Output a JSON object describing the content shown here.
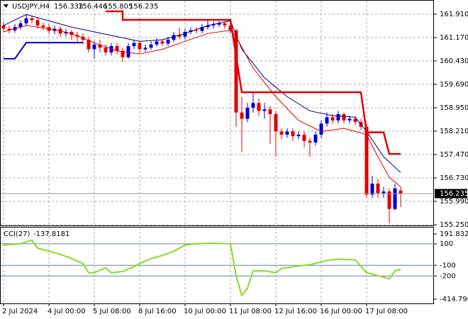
{
  "chart_data": [
    {
      "type": "candlestick",
      "title": "USDJPY,H4",
      "xlim": [
        -0.625,
        75.875
      ],
      "ylim": [
        155.228,
        162.358
      ],
      "xticks": [
        {
          "value": 0,
          "label": "2 Jul 2024"
        },
        {
          "value": 8,
          "label": "4 Jul 00:00"
        },
        {
          "value": 16,
          "label": "5 Jul 08:00"
        },
        {
          "value": 24,
          "label": "8 Jul 16:00"
        },
        {
          "value": 32,
          "label": "10 Jul 00:00"
        },
        {
          "value": 40,
          "label": "11 Jul 08:00"
        },
        {
          "value": 48,
          "label": "12 Jul 16:00"
        },
        {
          "value": 56,
          "label": "16 Jul 00:00"
        },
        {
          "value": 64,
          "label": "17 Jul 08:00"
        }
      ],
      "yticks": [
        {
          "value": 161.91,
          "label": "161.910"
        },
        {
          "value": 161.17,
          "label": "161.170"
        },
        {
          "value": 160.43,
          "label": "160.430"
        },
        {
          "value": 159.69,
          "label": "159.690"
        },
        {
          "value": 158.95,
          "label": "158.950"
        },
        {
          "value": 158.21,
          "label": "158.210"
        },
        {
          "value": 157.47,
          "label": "157.470"
        },
        {
          "value": 156.73,
          "label": "156.730"
        },
        {
          "value": 155.99,
          "label": "155.990"
        },
        {
          "value": 155.25,
          "label": "155.250"
        }
      ],
      "grid": true,
      "up_color": "#0000cc",
      "down_color": "#e00000",
      "candles": {
        "x": [
          0,
          1,
          2,
          3,
          4,
          5,
          6,
          7,
          8,
          9,
          10,
          11,
          12,
          13,
          14,
          15,
          16,
          17,
          18,
          19,
          20,
          21,
          22,
          23,
          24,
          25,
          26,
          27,
          28,
          29,
          30,
          31,
          32,
          33,
          34,
          35,
          36,
          37,
          38,
          39,
          40,
          41,
          42,
          43,
          44,
          45,
          46,
          47,
          48,
          49,
          50,
          51,
          52,
          53,
          54,
          55,
          56,
          57,
          58,
          59,
          60,
          61,
          62,
          63,
          64,
          65,
          66,
          67,
          68,
          69,
          70
        ],
        "open": [
          161.55,
          161.45,
          161.4,
          161.5,
          161.62,
          161.78,
          161.72,
          161.55,
          161.5,
          161.38,
          161.45,
          161.3,
          161.35,
          161.25,
          161.2,
          161.1,
          160.8,
          160.95,
          160.85,
          160.7,
          160.9,
          160.75,
          160.55,
          160.9,
          161.0,
          160.8,
          160.85,
          160.95,
          161.05,
          160.98,
          161.1,
          161.25,
          161.2,
          161.35,
          161.4,
          161.38,
          161.5,
          161.55,
          161.58,
          161.62,
          161.55,
          161.4,
          158.8,
          158.6,
          158.95,
          159.1,
          158.85,
          158.9,
          158.75,
          158.2,
          158.1,
          158.2,
          158.05,
          158.1,
          157.9,
          157.85,
          158.1,
          158.45,
          158.65,
          158.55,
          158.75,
          158.55,
          158.6,
          158.5,
          158.35,
          156.2,
          156.55,
          156.25,
          156.3,
          155.75,
          156.333
        ],
        "high": [
          161.68,
          161.55,
          161.6,
          161.72,
          161.9,
          161.85,
          161.8,
          161.65,
          161.6,
          161.55,
          161.52,
          161.45,
          161.42,
          161.35,
          161.3,
          161.2,
          161.05,
          161.1,
          160.95,
          161.0,
          161.0,
          160.85,
          161.0,
          161.1,
          161.05,
          160.95,
          161.05,
          161.15,
          161.12,
          161.2,
          161.35,
          161.48,
          161.45,
          161.5,
          161.5,
          161.6,
          161.75,
          161.68,
          161.7,
          161.68,
          161.65,
          161.45,
          159.3,
          159.1,
          159.4,
          159.25,
          159.1,
          159.0,
          158.85,
          158.3,
          158.3,
          158.3,
          158.2,
          158.2,
          158.0,
          158.2,
          158.55,
          158.8,
          158.75,
          158.85,
          158.8,
          158.7,
          158.68,
          158.6,
          158.45,
          156.8,
          156.7,
          156.45,
          156.4,
          156.55,
          156.446
        ],
        "low": [
          161.35,
          161.3,
          161.32,
          161.42,
          161.55,
          161.62,
          161.45,
          161.4,
          161.28,
          161.28,
          161.2,
          161.2,
          161.1,
          161.05,
          160.95,
          160.7,
          160.5,
          160.7,
          160.6,
          160.6,
          160.65,
          160.4,
          160.5,
          160.8,
          160.7,
          160.72,
          160.78,
          160.88,
          160.9,
          160.9,
          161.02,
          161.12,
          161.12,
          161.28,
          161.3,
          161.3,
          161.42,
          161.45,
          161.5,
          161.45,
          161.3,
          158.35,
          157.55,
          158.5,
          158.8,
          158.7,
          158.6,
          157.8,
          157.4,
          157.95,
          158.0,
          157.9,
          157.95,
          157.7,
          157.4,
          157.75,
          158.0,
          158.35,
          158.45,
          158.45,
          158.45,
          158.45,
          158.4,
          158.25,
          156.1,
          156.1,
          156.1,
          156.1,
          155.3,
          155.7,
          155.805
        ],
        "close": [
          161.45,
          161.4,
          161.5,
          161.62,
          161.78,
          161.72,
          161.55,
          161.5,
          161.38,
          161.45,
          161.3,
          161.35,
          161.25,
          161.2,
          161.1,
          160.8,
          160.95,
          160.85,
          160.7,
          160.9,
          160.75,
          160.55,
          160.9,
          161.0,
          160.8,
          160.85,
          160.95,
          161.05,
          160.98,
          161.1,
          161.25,
          161.2,
          161.35,
          161.4,
          161.38,
          161.5,
          161.55,
          161.58,
          161.62,
          161.55,
          161.4,
          158.8,
          158.6,
          158.95,
          159.1,
          158.85,
          158.9,
          158.75,
          158.2,
          158.1,
          158.2,
          158.05,
          158.1,
          157.9,
          157.85,
          158.1,
          158.45,
          158.65,
          158.55,
          158.75,
          158.55,
          158.6,
          158.5,
          158.35,
          156.2,
          156.55,
          156.25,
          156.3,
          155.75,
          156.4,
          156.235
        ]
      },
      "overlays": [
        {
          "color": "#000080",
          "width": 1,
          "x": [
            0,
            4,
            8,
            12,
            16,
            20,
            24,
            28,
            32,
            36,
            40,
            42,
            46,
            50,
            54,
            58,
            62,
            64,
            67,
            70
          ],
          "values": [
            161.55,
            161.9,
            161.7,
            161.5,
            161.35,
            161.2,
            161.05,
            161.1,
            161.3,
            161.55,
            161.7,
            160.8,
            159.9,
            159.3,
            158.85,
            158.7,
            158.65,
            158.2,
            157.4,
            156.9
          ]
        },
        {
          "color": "#e00000",
          "width": 1,
          "x": [
            0,
            4,
            8,
            12,
            16,
            20,
            24,
            28,
            32,
            36,
            40,
            41,
            44,
            48,
            52,
            56,
            60,
            64,
            66,
            68,
            70
          ],
          "values": [
            161.35,
            161.55,
            161.45,
            161.3,
            161.0,
            160.75,
            160.65,
            160.8,
            161.05,
            161.3,
            161.4,
            161.2,
            160.2,
            159.3,
            158.55,
            158.2,
            158.3,
            158.1,
            157.4,
            156.75,
            156.45
          ]
        },
        {
          "color": "#e00000",
          "width": 2.5,
          "x": [
            18,
            21,
            21,
            40,
            42,
            63,
            64,
            67,
            68,
            70
          ],
          "values": [
            162.0,
            162.0,
            161.73,
            161.73,
            159.44,
            159.44,
            158.17,
            158.17,
            157.49,
            157.49
          ]
        },
        {
          "color": "#0000cc",
          "width": 2,
          "x": [
            0,
            2,
            4,
            14
          ],
          "values": [
            160.5,
            160.5,
            161.01,
            161.01
          ]
        }
      ]
    },
    {
      "type": "line",
      "title": "CCI(27)",
      "xlim": [
        -0.625,
        75.875
      ],
      "ylim": [
        -414.7988,
        191.8324
      ],
      "yticks": [
        191.8324,
        100,
        -100,
        -200,
        -414.7988
      ],
      "level_color": "#5f86a8",
      "series": [
        {
          "color": "#80e020",
          "width": 2,
          "x": [
            0,
            3,
            5,
            6,
            8,
            10,
            12,
            14,
            15,
            16,
            18,
            19,
            21,
            23,
            24,
            26,
            28,
            30,
            32,
            34,
            37,
            40,
            41,
            42,
            43,
            44,
            46,
            48,
            49,
            52,
            54,
            57,
            59,
            62,
            64,
            66,
            68,
            69,
            70
          ],
          "values": [
            88.8,
            100.3,
            134.6,
            60,
            31.6,
            3,
            -37,
            -83,
            -169,
            -169,
            -123,
            -169,
            -157,
            -112,
            -83,
            -37,
            -8.5,
            31.6,
            89,
            100,
            106,
            100,
            -197,
            -380,
            -312,
            -152,
            -152,
            -169,
            -129,
            -106,
            -94.4,
            -54,
            -43,
            -48.6,
            -169,
            -197,
            -226,
            -152,
            -137.8181
          ]
        }
      ]
    }
  ]
}
